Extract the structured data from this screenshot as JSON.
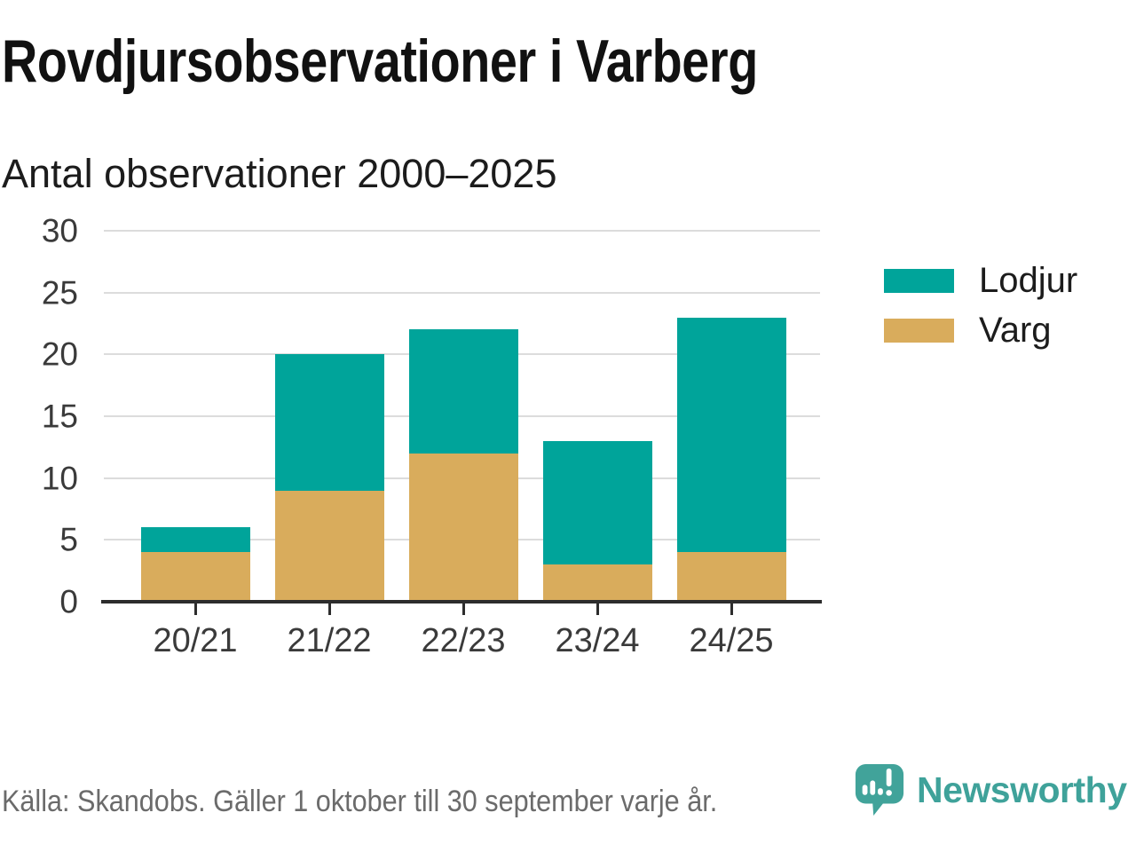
{
  "chart_data": {
    "type": "bar",
    "stacked": true,
    "title": "Rovdjursobservationer i Varberg",
    "subtitle": "Antal observationer 2000–2025",
    "categories": [
      "20/21",
      "21/22",
      "22/23",
      "23/24",
      "24/25"
    ],
    "series": [
      {
        "name": "Varg",
        "color": "#d9ac5c",
        "values": [
          4,
          9,
          12,
          3,
          4
        ]
      },
      {
        "name": "Lodjur",
        "color": "#00a49a",
        "values": [
          2,
          11,
          10,
          10,
          19
        ]
      }
    ],
    "totals": [
      6,
      20,
      22,
      13,
      23
    ],
    "xlabel": "",
    "ylabel": "",
    "ylim": [
      0,
      30
    ],
    "yticks": [
      0,
      5,
      10,
      15,
      20,
      25,
      30
    ],
    "grid": true,
    "legend_position": "right",
    "legend_items": [
      {
        "label": "Lodjur",
        "color": "#00a49a"
      },
      {
        "label": "Varg",
        "color": "#d9ac5c"
      }
    ]
  },
  "footer": {
    "source": "Källa: Skandobs. Gäller 1 oktober till 30 september varje år.",
    "brand": "Newsworthy"
  },
  "icons": {
    "brand_logo": "newsworthy-speech-bubble-bar-chart-icon"
  },
  "colors": {
    "lodjur": "#00a49a",
    "varg": "#d9ac5c",
    "brand_teal": "#3fa29a",
    "grid": "#dcdcdc",
    "axis": "#2d2d2d",
    "title_text": "#111111",
    "tick_text": "#3a3a3a",
    "muted_text": "#6b6b6b",
    "background": "#ffffff"
  }
}
